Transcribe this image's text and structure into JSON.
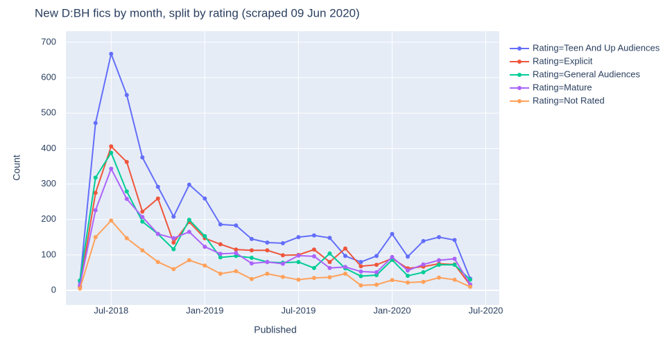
{
  "chart_data": {
    "type": "line",
    "title": "New D:BH fics by month, split by rating (scraped 09 Jun 2020)",
    "xlabel": "Published",
    "ylabel": "Count",
    "x": [
      "2018-05",
      "2018-06",
      "2018-07",
      "2018-08",
      "2018-09",
      "2018-10",
      "2018-11",
      "2018-12",
      "2019-01",
      "2019-02",
      "2019-03",
      "2019-04",
      "2019-05",
      "2019-06",
      "2019-07",
      "2019-08",
      "2019-09",
      "2019-10",
      "2019-11",
      "2019-12",
      "2020-01",
      "2020-02",
      "2020-03",
      "2020-04",
      "2020-05",
      "2020-06"
    ],
    "series": [
      {
        "name": "Rating=Teen And Up Audiences",
        "color": "#636efa",
        "values": [
          25,
          472,
          667,
          551,
          375,
          292,
          208,
          298,
          259,
          186,
          183,
          145,
          135,
          133,
          150,
          155,
          148,
          97,
          80,
          97,
          159,
          95,
          139,
          150,
          142,
          33
        ]
      },
      {
        "name": "Rating=Explicit",
        "color": "#ef553b",
        "values": [
          10,
          275,
          406,
          362,
          222,
          259,
          135,
          193,
          147,
          130,
          115,
          113,
          113,
          99,
          100,
          115,
          80,
          118,
          68,
          72,
          90,
          62,
          67,
          75,
          73,
          15
        ]
      },
      {
        "name": "Rating=General Audiences",
        "color": "#00cc96",
        "values": [
          28,
          318,
          388,
          279,
          194,
          159,
          116,
          199,
          153,
          93,
          97,
          92,
          80,
          78,
          80,
          63,
          104,
          62,
          40,
          43,
          86,
          41,
          51,
          72,
          72,
          30
        ]
      },
      {
        "name": "Rating=Mature",
        "color": "#ab63fa",
        "values": [
          15,
          226,
          343,
          258,
          207,
          159,
          147,
          165,
          123,
          103,
          105,
          76,
          80,
          75,
          98,
          96,
          63,
          66,
          53,
          51,
          94,
          56,
          73,
          85,
          89,
          17
        ]
      },
      {
        "name": "Rating=Not Rated",
        "color": "#ffa15a",
        "values": [
          5,
          150,
          197,
          147,
          113,
          80,
          60,
          85,
          70,
          47,
          54,
          32,
          47,
          38,
          30,
          35,
          37,
          47,
          14,
          16,
          29,
          22,
          24,
          36,
          30,
          10
        ]
      }
    ],
    "xlim": [
      "2018-04-04",
      "2020-07-27"
    ],
    "xticks": [
      {
        "value": "2018-07",
        "label": "Jul-2018"
      },
      {
        "value": "2019-01",
        "label": "Jan-2019"
      },
      {
        "value": "2019-07",
        "label": "Jul-2019"
      },
      {
        "value": "2020-01",
        "label": "Jan-2020"
      },
      {
        "value": "2020-07",
        "label": "Jul-2020"
      }
    ],
    "ylim": [
      -41,
      731
    ],
    "yticks": [
      0,
      100,
      200,
      300,
      400,
      500,
      600,
      700
    ],
    "grid": true,
    "legend": "right"
  }
}
